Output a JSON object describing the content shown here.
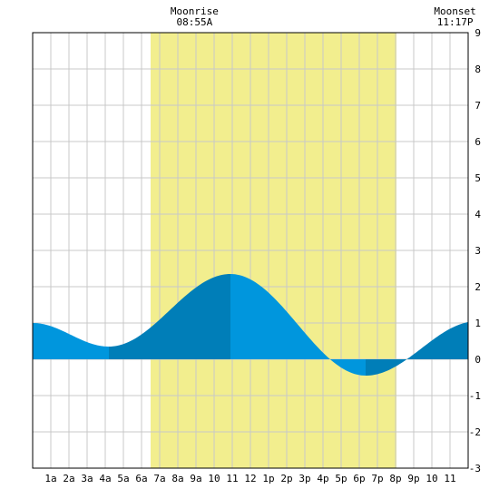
{
  "chart_data": {
    "type": "area",
    "x_unit": "hour of day",
    "ylim": [
      -3,
      9
    ],
    "y_ticks": [
      "-3",
      "-2",
      "-1",
      "0",
      "1",
      "2",
      "3",
      "4",
      "5",
      "6",
      "7",
      "8",
      "9"
    ],
    "x_tick_hours": [
      1,
      2,
      3,
      4,
      5,
      6,
      7,
      8,
      9,
      10,
      11,
      12,
      13,
      14,
      15,
      16,
      17,
      18,
      19,
      20,
      21,
      22,
      23
    ],
    "x_tick_labels": [
      "1a",
      "2a",
      "3a",
      "4a",
      "5a",
      "6a",
      "7a",
      "8a",
      "9a",
      "10",
      "11",
      "12",
      "1p",
      "2p",
      "3p",
      "4p",
      "5p",
      "6p",
      "7p",
      "8p",
      "9p",
      "10",
      "11"
    ],
    "daylight_hours": [
      6.5,
      20.05
    ],
    "extremes": [
      {
        "kind": "high",
        "time": 0.0,
        "height": 1.0
      },
      {
        "kind": "low",
        "time": 4.2,
        "height": 0.35
      },
      {
        "kind": "high",
        "time": 10.9,
        "height": 2.35
      },
      {
        "kind": "low",
        "time": 18.35,
        "height": -0.45
      },
      {
        "kind": "high",
        "time": 24.5,
        "height": 1.05
      }
    ],
    "series": [
      {
        "values": [
          [
            0.0,
            1.0
          ],
          [
            0.5,
            0.97
          ],
          [
            1.0,
            0.9
          ],
          [
            1.5,
            0.79
          ],
          [
            2.0,
            0.66
          ],
          [
            2.5,
            0.53
          ],
          [
            3.0,
            0.43
          ],
          [
            3.5,
            0.37
          ],
          [
            4.0,
            0.35
          ],
          [
            4.5,
            0.37
          ],
          [
            5.0,
            0.46
          ],
          [
            5.5,
            0.6
          ],
          [
            6.0,
            0.79
          ],
          [
            6.5,
            1.0
          ],
          [
            7.0,
            1.22
          ],
          [
            7.5,
            1.45
          ],
          [
            8.0,
            1.66
          ],
          [
            8.5,
            1.86
          ],
          [
            9.0,
            2.04
          ],
          [
            9.5,
            2.18
          ],
          [
            10.0,
            2.28
          ],
          [
            10.5,
            2.34
          ],
          [
            11.0,
            2.35
          ],
          [
            11.5,
            2.31
          ],
          [
            12.0,
            2.2
          ],
          [
            12.5,
            2.04
          ],
          [
            13.0,
            1.83
          ],
          [
            13.5,
            1.59
          ],
          [
            14.0,
            1.32
          ],
          [
            14.5,
            1.04
          ],
          [
            15.0,
            0.75
          ],
          [
            15.5,
            0.48
          ],
          [
            16.0,
            0.23
          ],
          [
            16.5,
            0.01
          ],
          [
            17.0,
            -0.18
          ],
          [
            17.5,
            -0.33
          ],
          [
            18.0,
            -0.42
          ],
          [
            18.5,
            -0.45
          ],
          [
            19.0,
            -0.42
          ],
          [
            19.5,
            -0.33
          ],
          [
            20.0,
            -0.2
          ],
          [
            20.5,
            -0.05
          ],
          [
            21.0,
            0.13
          ],
          [
            21.5,
            0.33
          ],
          [
            22.0,
            0.52
          ],
          [
            22.5,
            0.7
          ],
          [
            23.0,
            0.84
          ],
          [
            23.5,
            0.95
          ],
          [
            24.0,
            1.01
          ]
        ]
      }
    ],
    "annotations": [
      {
        "label": "Moonrise",
        "time_text": "08:55A",
        "hour": 8.92
      },
      {
        "label": "Moonset",
        "time_text": "11:17P",
        "hour": 23.28
      }
    ],
    "grid": true,
    "colors": {
      "daylight": "#f2ee8e",
      "fill_light": "#0096dd",
      "fill_dark": "#007eb8",
      "grid": "#c8c8c8",
      "frame": "#000000"
    }
  }
}
